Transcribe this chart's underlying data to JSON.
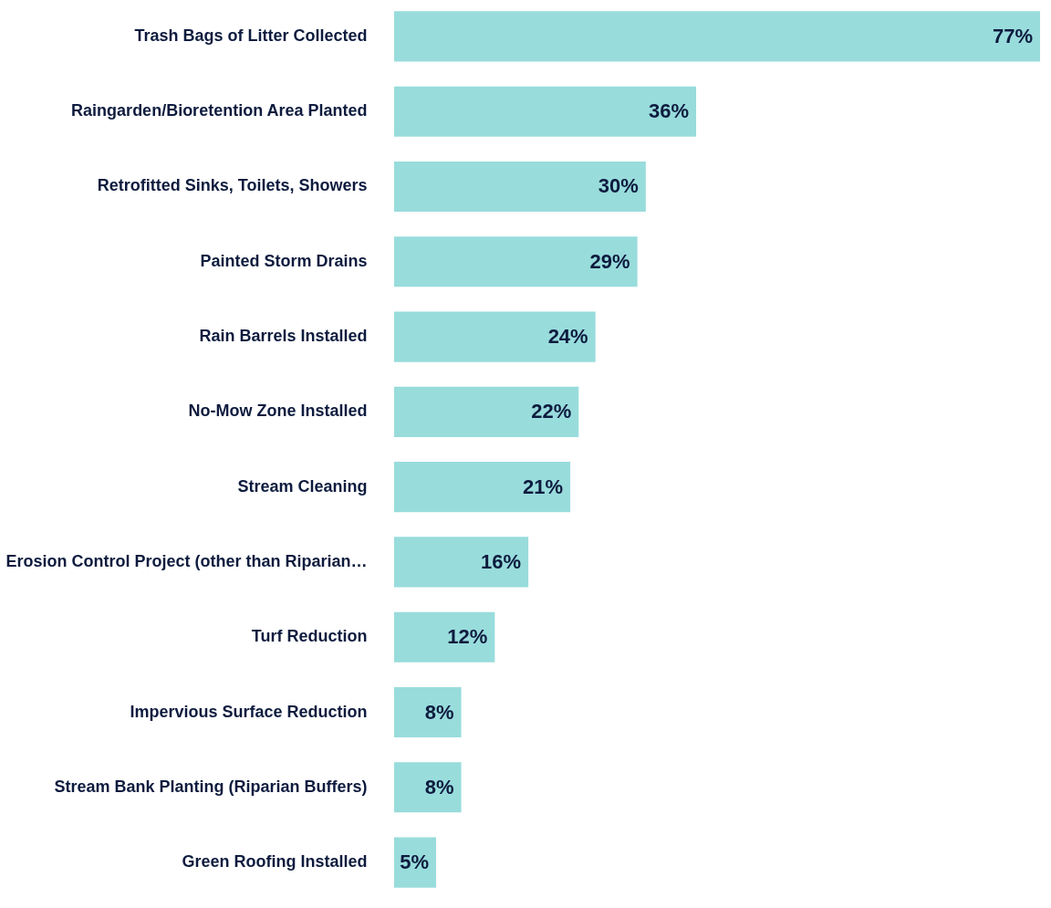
{
  "chart_data": {
    "type": "bar",
    "orientation": "horizontal",
    "categories": [
      "Trash Bags of Litter Collected",
      "Raingarden/Bioretention Area Planted",
      "Retrofitted Sinks, Toilets, Showers",
      "Painted Storm Drains",
      "Rain Barrels Installed",
      "No-Mow Zone Installed",
      "Stream Cleaning",
      "Erosion Control Project (other than Riparian…",
      "Turf Reduction",
      "Impervious Surface Reduction",
      "Stream Bank Planting (Riparian Buffers)",
      "Green Roofing Installed"
    ],
    "values": [
      77,
      36,
      30,
      29,
      24,
      22,
      21,
      16,
      12,
      8,
      8,
      5
    ],
    "value_labels": [
      "77%",
      "36%",
      "30%",
      "29%",
      "24%",
      "22%",
      "21%",
      "16%",
      "12%",
      "8%",
      "8%",
      "5%"
    ],
    "color": "#99dcdc"
  }
}
